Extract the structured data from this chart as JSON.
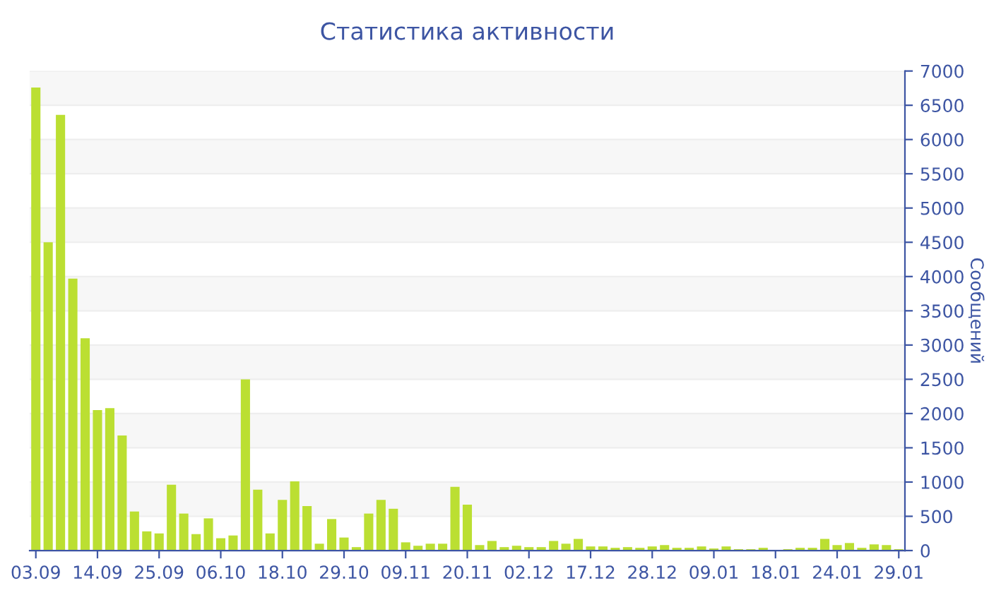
{
  "chart_data": {
    "type": "bar",
    "title": "Статистика активности",
    "ylabel": "Сообщений",
    "categories": [
      "03.09",
      null,
      null,
      null,
      null,
      "14.09",
      null,
      null,
      null,
      null,
      "25.09",
      null,
      null,
      null,
      null,
      "06.10",
      null,
      null,
      null,
      null,
      "18.10",
      null,
      null,
      null,
      null,
      "29.10",
      null,
      null,
      null,
      null,
      "09.11",
      null,
      null,
      null,
      null,
      "20.11",
      null,
      null,
      null,
      null,
      "02.12",
      null,
      null,
      null,
      null,
      "17.12",
      null,
      null,
      null,
      null,
      "28.12",
      null,
      null,
      null,
      null,
      "09.01",
      null,
      null,
      null,
      null,
      "18.01",
      null,
      null,
      null,
      null,
      "24.01",
      null,
      null,
      null,
      null,
      "29.01"
    ],
    "values": [
      6760,
      4500,
      6360,
      3970,
      3100,
      2050,
      2080,
      1680,
      570,
      280,
      250,
      960,
      540,
      240,
      470,
      180,
      220,
      2500,
      890,
      250,
      740,
      1010,
      650,
      100,
      460,
      190,
      50,
      540,
      740,
      610,
      120,
      70,
      100,
      100,
      930,
      670,
      80,
      140,
      50,
      70,
      50,
      50,
      140,
      100,
      170,
      60,
      60,
      40,
      50,
      40,
      60,
      80,
      40,
      40,
      60,
      30,
      60,
      20,
      20,
      40,
      10,
      20,
      40,
      40,
      170,
      80,
      110,
      40,
      90,
      80,
      20
    ],
    "color": "#bbdf32",
    "ylim": [
      0,
      7000
    ],
    "yticks": [
      0,
      500,
      1000,
      1500,
      2000,
      2500,
      3000,
      3500,
      4000,
      4500,
      5000,
      5500,
      6000,
      6500,
      7000
    ],
    "grid": "y"
  }
}
